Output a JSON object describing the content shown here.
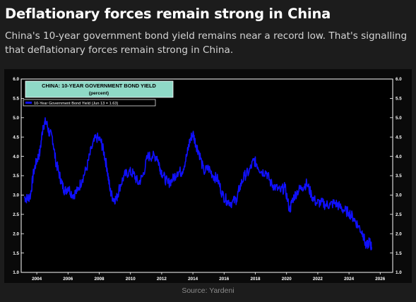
{
  "header": {
    "headline": "Deflationary forces remain strong in China",
    "subhead": "China's 10-year government bond yield remains near a record low. That's signalling that deflationary forces remain strong in China."
  },
  "footer": {
    "source": "Source: Yardeni"
  },
  "chart_data": {
    "type": "line",
    "title": "CHINA: 10-YEAR GOVERNMENT BOND YIELD",
    "subtitle": "(percent)",
    "legend": "10-Year Government Bond Yield (Jun 13 = 1.63)",
    "legend_position": "top-left",
    "grid": false,
    "xlim": [
      2003.0,
      2026.8
    ],
    "ylim": [
      1.0,
      6.0
    ],
    "x_ticks": [
      "2004",
      "2006",
      "2008",
      "2010",
      "2012",
      "2014",
      "2016",
      "2018",
      "2020",
      "2022",
      "2024",
      "2026"
    ],
    "y_ticks": [
      "1.0",
      "1.5",
      "2.0",
      "2.5",
      "3.0",
      "3.5",
      "4.0",
      "4.5",
      "5.0",
      "5.5",
      "6.0"
    ],
    "colors": {
      "line": "#1010ff",
      "title_box": "#8fd9c7",
      "axes": "#ffffff",
      "background": "#000000"
    },
    "series": [
      {
        "name": "10-Year Government Bond Yield (Jun 13 = 1.63)",
        "x": [
          2003.2,
          2003.4,
          2003.6,
          2003.8,
          2004.0,
          2004.2,
          2004.4,
          2004.6,
          2004.8,
          2005.0,
          2005.2,
          2005.4,
          2005.6,
          2005.8,
          2006.0,
          2006.3,
          2006.6,
          2006.9,
          2007.2,
          2007.5,
          2007.8,
          2008.1,
          2008.3,
          2008.5,
          2008.7,
          2008.9,
          2009.1,
          2009.3,
          2009.6,
          2009.9,
          2010.2,
          2010.5,
          2010.8,
          2011.1,
          2011.4,
          2011.7,
          2011.9,
          2012.1,
          2012.4,
          2012.7,
          2013.0,
          2013.3,
          2013.6,
          2013.8,
          2014.0,
          2014.2,
          2014.4,
          2014.7,
          2015.0,
          2015.3,
          2015.6,
          2015.9,
          2016.2,
          2016.5,
          2016.8,
          2017.0,
          2017.3,
          2017.6,
          2017.9,
          2018.1,
          2018.4,
          2018.7,
          2019.0,
          2019.3,
          2019.6,
          2019.9,
          2020.2,
          2020.4,
          2020.7,
          2021.0,
          2021.3,
          2021.6,
          2021.9,
          2022.2,
          2022.5,
          2022.8,
          2023.1,
          2023.4,
          2023.7,
          2024.0,
          2024.3,
          2024.6,
          2024.9,
          2025.1,
          2025.3,
          2025.45
        ],
        "values": [
          2.95,
          2.9,
          3.0,
          3.6,
          3.9,
          4.1,
          4.8,
          4.9,
          4.6,
          4.5,
          3.9,
          3.6,
          3.3,
          3.1,
          3.2,
          3.0,
          3.1,
          3.4,
          3.7,
          4.2,
          4.5,
          4.4,
          4.1,
          3.7,
          3.1,
          2.9,
          2.9,
          3.2,
          3.5,
          3.6,
          3.55,
          3.3,
          3.5,
          4.0,
          4.0,
          4.0,
          3.7,
          3.5,
          3.3,
          3.4,
          3.6,
          3.6,
          4.0,
          4.4,
          4.6,
          4.3,
          4.1,
          3.6,
          3.7,
          3.5,
          3.4,
          3.0,
          2.85,
          2.8,
          2.9,
          3.2,
          3.5,
          3.6,
          3.9,
          3.8,
          3.6,
          3.6,
          3.3,
          3.2,
          3.1,
          3.2,
          2.6,
          2.9,
          3.1,
          3.2,
          3.3,
          3.0,
          2.8,
          2.8,
          2.75,
          2.75,
          2.8,
          2.7,
          2.6,
          2.55,
          2.4,
          2.2,
          2.0,
          1.65,
          1.8,
          1.65
        ]
      }
    ]
  }
}
